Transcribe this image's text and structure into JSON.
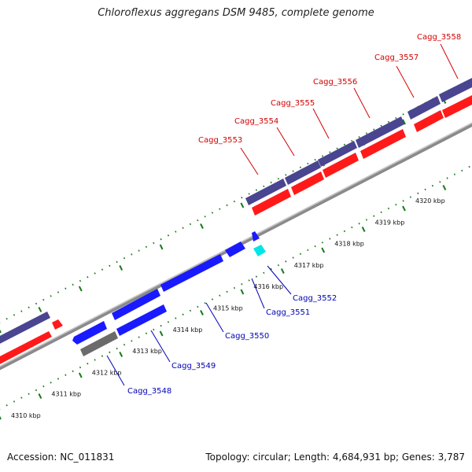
{
  "title": "Chloroflexus aggregans DSM 9485, complete genome",
  "footer": {
    "accession": "Accession: NC_011831",
    "summary": "Topology: circular; Length: 4,684,931 bp; Genes: 3,787"
  },
  "colors": {
    "plus_cds": "#4a4590",
    "plus_cds_alt": "#ff1a1a",
    "minus_cds": "#1a1aff",
    "minus_cds_alt": "#6b6b6b",
    "rna": "#00e5e5",
    "label_plus": "#d40000",
    "label_minus": "#0000b8",
    "tick": "#1a7a1a"
  },
  "chart_data": {
    "type": "genome-map",
    "scale_unit": "kbp",
    "tick_labels": [
      "4310 kbp",
      "4311 kbp",
      "4312 kbp",
      "4313 kbp",
      "4314 kbp",
      "4315 kbp",
      "4316 kbp",
      "4317 kbp",
      "4318 kbp",
      "4319 kbp",
      "4320 kbp"
    ],
    "genes_plus_strand": [
      "Cagg_3553",
      "Cagg_3554",
      "Cagg_3555",
      "Cagg_3556",
      "Cagg_3557",
      "Cagg_3558"
    ],
    "genes_minus_strand": [
      "Cagg_3548",
      "Cagg_3549",
      "Cagg_3550",
      "Cagg_3551",
      "Cagg_3552"
    ]
  }
}
